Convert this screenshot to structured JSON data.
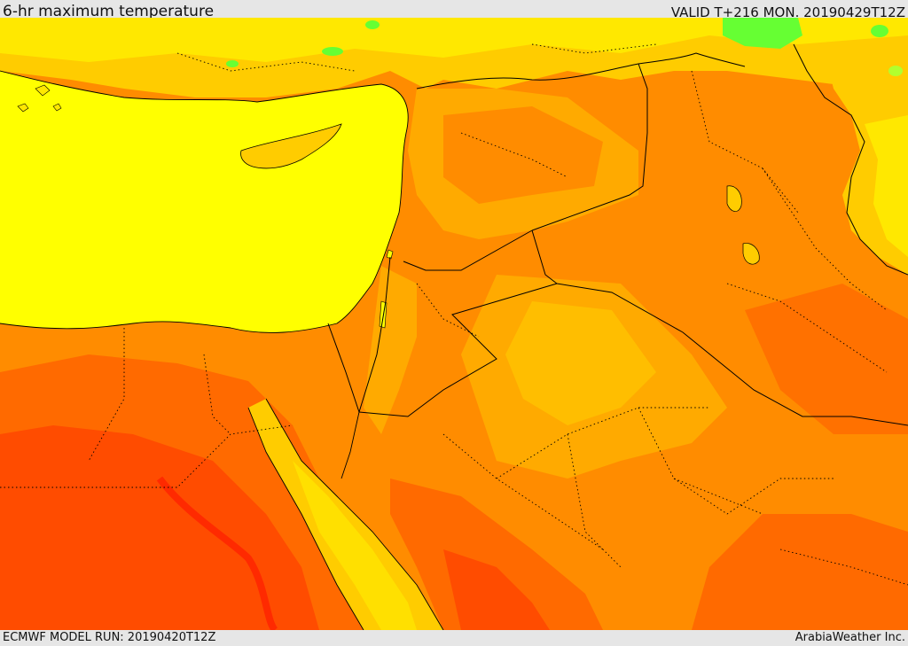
{
  "header": {
    "title": "6-hr maximum temperature",
    "valid": "VALID T+216 MON. 20190429T12Z"
  },
  "footer": {
    "model_run": "ECMWF MODEL RUN: 20190420T12Z",
    "credit": "ArabiaWeather Inc."
  },
  "map": {
    "colors": {
      "sea": "#ffff00",
      "light_yellow": "#ffe800",
      "yellow_orange": "#ffcc00",
      "light_orange": "#ffaa00",
      "orange": "#ff8c00",
      "dark_orange": "#ff6a00",
      "red_orange": "#ff4c00",
      "green": "#66ff33",
      "light_green": "#b2ff2e",
      "border": "#000000"
    }
  }
}
